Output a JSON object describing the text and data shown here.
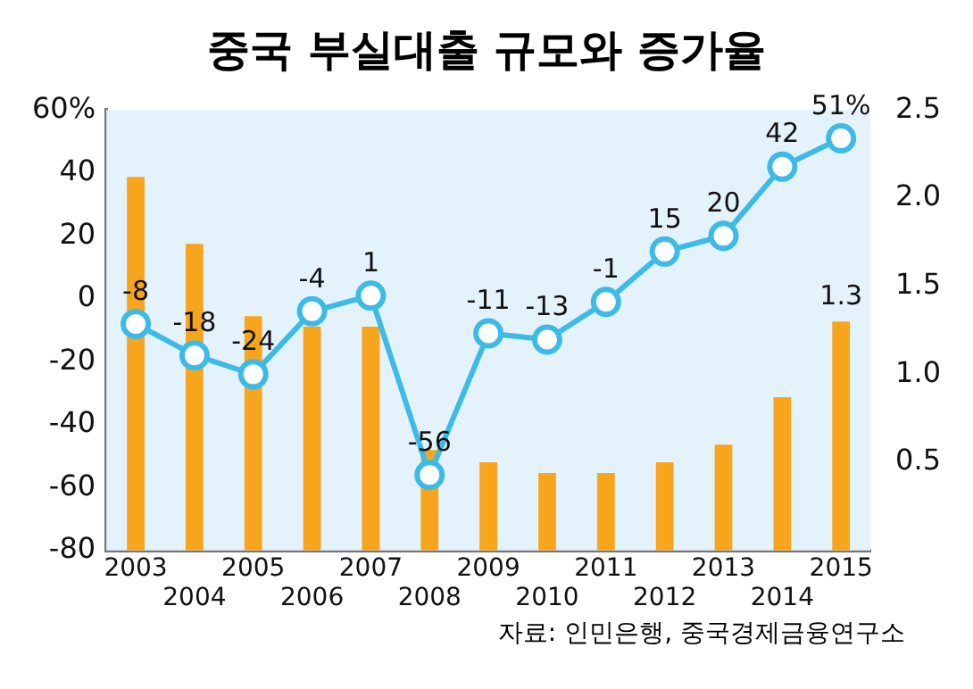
{
  "chart_data": {
    "type": "bar",
    "title": "중국 부실대출 규모와 증가율",
    "categories": [
      "2003",
      "2004",
      "2005",
      "2006",
      "2007",
      "2008",
      "2009",
      "2010",
      "2011",
      "2012",
      "2013",
      "2014",
      "2015"
    ],
    "series": [
      {
        "axis": "y2",
        "color": "#f7a51c",
        "values": [
          2.12,
          1.74,
          1.33,
          1.27,
          1.27,
          0.57,
          0.5,
          0.44,
          0.44,
          0.5,
          0.6,
          0.87,
          1.3
        ],
        "value_labels": [
          null,
          null,
          null,
          null,
          null,
          null,
          null,
          null,
          null,
          null,
          null,
          null,
          "1.3"
        ]
      },
      {
        "type": "line",
        "axis": "y",
        "color": "#3dbbe6",
        "marker": "circle",
        "values": [
          -8,
          -18,
          -24,
          -4,
          1,
          -56,
          -11,
          -13,
          -1,
          15,
          20,
          42,
          51
        ],
        "value_labels": [
          "-8",
          "-18",
          "-24",
          "-4",
          "1",
          "-56",
          "-11",
          "-13",
          "-1",
          "15",
          "20",
          "42",
          "51%"
        ]
      }
    ],
    "ylim": [
      -80,
      60
    ],
    "yticks": [
      -80,
      -60,
      -40,
      -20,
      0,
      20,
      40,
      {
        "value": 60,
        "label": "60%"
      }
    ],
    "y2lim": [
      0,
      2.5
    ],
    "y2ticks": [
      0.5,
      {
        "value": 1,
        "label": "1.0"
      },
      1.5,
      {
        "value": 2,
        "label": "2.0"
      },
      2.5
    ],
    "grid": false,
    "legend": false,
    "annotations": [
      "자료: 인민은행, 중국경제금융연구소"
    ]
  }
}
